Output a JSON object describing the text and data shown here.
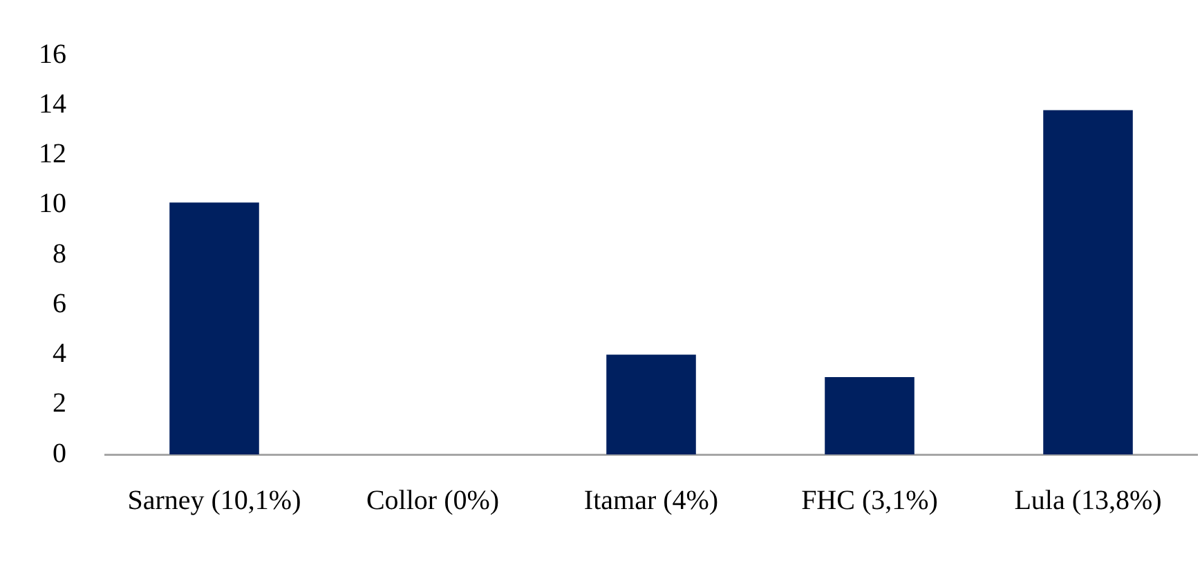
{
  "chart_data": {
    "type": "bar",
    "categories": [
      "Sarney (10,1%)",
      "Collor (0%)",
      "Itamar (4%)",
      "FHC (3,1%)",
      "Lula (13,8%)"
    ],
    "values": [
      10.1,
      0,
      4,
      3.1,
      13.8
    ],
    "color": "#002060",
    "ylim": [
      0,
      16
    ],
    "yticks": [
      0,
      2,
      4,
      6,
      8,
      10,
      12,
      14,
      16
    ],
    "grid": false,
    "legend": false
  }
}
